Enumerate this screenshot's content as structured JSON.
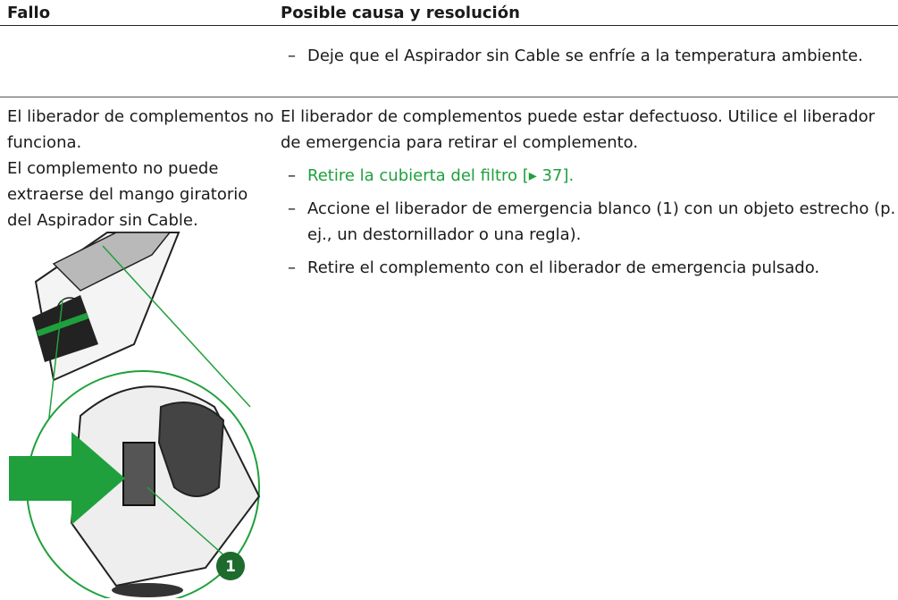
{
  "table": {
    "header": [
      "Fallo",
      "Posible causa y resolución"
    ],
    "rows": [
      {
        "cause_steps": [
          "Deje que el Aspirador sin Cable se enfríe a la temperatura ambiente."
        ]
      },
      {
        "fault": [
          "El liberador de complementos no funciona.",
          "El complemento no puede extraerse del mango giratorio del Aspirador sin Cable."
        ],
        "cause": "El liberador de complementos puede estar defectuoso. Utilice el liberador de emergencia para retirar el complemento.",
        "link_step": {
          "text": "Retire la cubierta del filtro",
          "ref": "[▸ 37]."
        },
        "cause_steps": [
          "Accione el liberador de emergencia blanco (1) con un objeto estrecho (p. ej., un destornillador o una regla).",
          "Retire el complemento con el liberador de emergencia pulsado."
        ]
      }
    ]
  },
  "figure": {
    "callout": "1"
  }
}
